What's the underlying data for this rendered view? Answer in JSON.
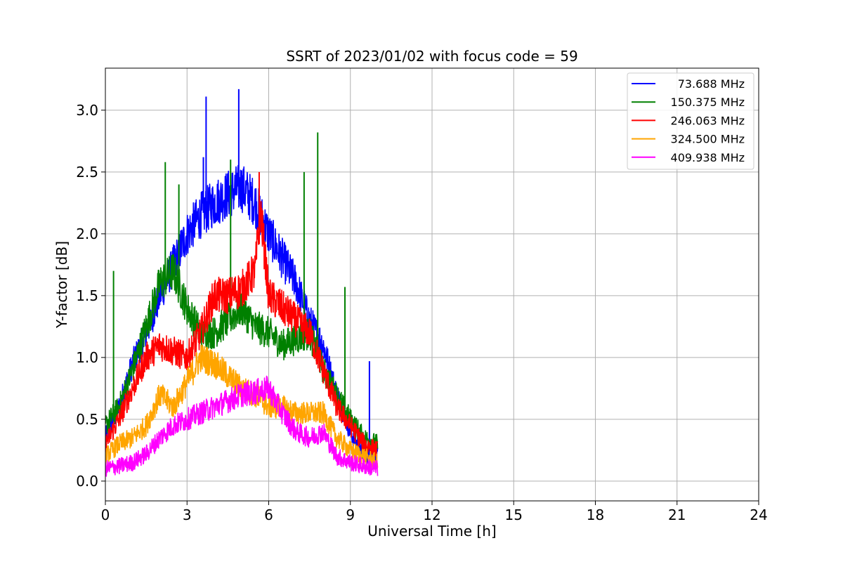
{
  "chart_data": {
    "type": "line",
    "title": "SSRT of 2023/01/02 with focus code = 59",
    "xlabel": "Universal Time [h]",
    "ylabel": "Y-factor [dB]",
    "xlim": [
      0,
      24
    ],
    "ylim": [
      -0.16,
      3.34
    ],
    "xticks": [
      0,
      3,
      6,
      9,
      12,
      15,
      18,
      21,
      24
    ],
    "xtick_labels": [
      "0",
      "3",
      "6",
      "9",
      "12",
      "15",
      "18",
      "21",
      "24"
    ],
    "yticks": [
      0.0,
      0.5,
      1.0,
      1.5,
      2.0,
      2.5,
      3.0
    ],
    "ytick_labels": [
      "0.0",
      "0.5",
      "1.0",
      "1.5",
      "2.0",
      "2.5",
      "3.0"
    ],
    "grid": true,
    "legend_position": "top-right",
    "series": [
      {
        "name": "73.688 MHz",
        "color": "#0000ff",
        "x": [
          0.0,
          0.5,
          1.0,
          1.5,
          2.0,
          2.5,
          3.0,
          3.5,
          4.0,
          4.5,
          5.0,
          5.5,
          6.0,
          6.5,
          7.0,
          7.5,
          8.0,
          8.5,
          9.0,
          9.5,
          10.0
        ],
        "y": [
          0.35,
          0.6,
          0.95,
          1.2,
          1.5,
          1.75,
          2.0,
          2.15,
          2.25,
          2.32,
          2.38,
          2.25,
          2.0,
          1.8,
          1.6,
          1.3,
          1.1,
          0.7,
          0.4,
          0.2,
          0.2
        ],
        "spikes": [
          {
            "x": 3.7,
            "y": 3.11
          },
          {
            "x": 3.6,
            "y": 2.62
          },
          {
            "x": 4.9,
            "y": 3.17
          },
          {
            "x": 9.7,
            "y": 0.97
          }
        ]
      },
      {
        "name": "150.375 MHz",
        "color": "#008000",
        "x": [
          0.0,
          0.5,
          1.0,
          1.5,
          2.0,
          2.5,
          3.0,
          3.5,
          4.0,
          4.5,
          5.0,
          5.5,
          6.0,
          6.5,
          7.0,
          7.5,
          8.0,
          8.5,
          9.0,
          9.5,
          10.0
        ],
        "y": [
          0.45,
          0.6,
          0.9,
          1.25,
          1.6,
          1.7,
          1.4,
          1.2,
          1.2,
          1.3,
          1.4,
          1.25,
          1.2,
          1.1,
          1.15,
          1.2,
          0.9,
          0.7,
          0.5,
          0.35,
          0.3
        ],
        "spikes": [
          {
            "x": 0.3,
            "y": 1.7
          },
          {
            "x": 2.2,
            "y": 2.58
          },
          {
            "x": 2.7,
            "y": 2.4
          },
          {
            "x": 4.6,
            "y": 2.6
          },
          {
            "x": 7.8,
            "y": 2.82
          },
          {
            "x": 7.3,
            "y": 2.5
          },
          {
            "x": 8.8,
            "y": 1.57
          }
        ]
      },
      {
        "name": "246.063 MHz",
        "color": "#ff0000",
        "x": [
          0.0,
          0.5,
          1.0,
          1.5,
          2.0,
          2.5,
          3.0,
          3.5,
          4.0,
          4.5,
          5.0,
          5.5,
          5.7,
          6.0,
          6.5,
          7.0,
          7.5,
          8.0,
          8.5,
          9.0,
          9.5,
          10.0
        ],
        "y": [
          0.3,
          0.5,
          0.75,
          1.0,
          1.1,
          1.05,
          1.0,
          1.2,
          1.5,
          1.5,
          1.55,
          1.7,
          2.2,
          1.5,
          1.4,
          1.3,
          1.2,
          0.9,
          0.6,
          0.45,
          0.3,
          0.25
        ],
        "spikes": [
          {
            "x": 5.65,
            "y": 2.5
          }
        ]
      },
      {
        "name": "324.500 MHz",
        "color": "#ffa500",
        "x": [
          0.0,
          0.5,
          1.0,
          1.5,
          2.0,
          2.5,
          3.0,
          3.5,
          4.0,
          4.5,
          5.0,
          5.5,
          6.0,
          6.5,
          7.0,
          7.5,
          8.0,
          8.5,
          9.0,
          9.5,
          10.0
        ],
        "y": [
          0.2,
          0.3,
          0.35,
          0.45,
          0.7,
          0.6,
          0.8,
          1.0,
          0.95,
          0.85,
          0.75,
          0.7,
          0.6,
          0.6,
          0.55,
          0.55,
          0.55,
          0.35,
          0.25,
          0.2,
          0.15
        ],
        "spikes": []
      },
      {
        "name": "409.938 MHz",
        "color": "#ff00ff",
        "x": [
          0.0,
          0.5,
          1.0,
          1.5,
          2.0,
          2.5,
          3.0,
          3.5,
          4.0,
          4.5,
          5.0,
          5.5,
          6.0,
          6.5,
          7.0,
          7.5,
          8.0,
          8.5,
          9.0,
          9.5,
          10.0
        ],
        "y": [
          0.1,
          0.12,
          0.15,
          0.22,
          0.35,
          0.45,
          0.5,
          0.55,
          0.6,
          0.65,
          0.7,
          0.72,
          0.75,
          0.55,
          0.4,
          0.35,
          0.4,
          0.2,
          0.15,
          0.12,
          0.1
        ],
        "spikes": []
      }
    ]
  }
}
